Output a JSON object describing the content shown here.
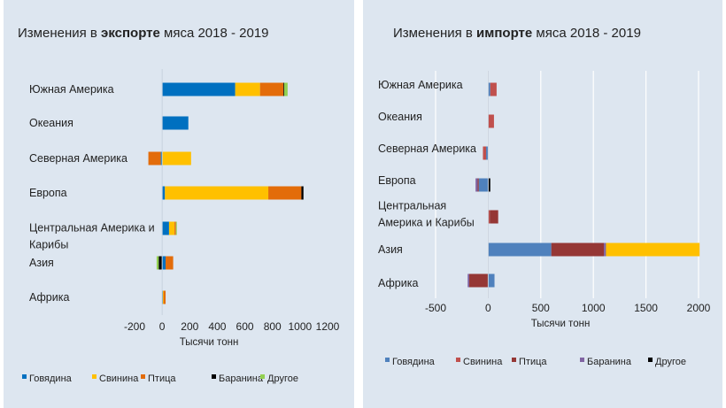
{
  "chart_data": [
    {
      "type": "bar",
      "stacked": true,
      "orientation": "horizontal",
      "title_parts": [
        "Изменения в ",
        "экспорте",
        " мяса 2018 - 2019"
      ],
      "xlabel": "Тысячи тонн",
      "xlim": [
        -200,
        1200
      ],
      "xticks": [
        "-200",
        "0",
        "200",
        "400",
        "600",
        "800",
        "1000",
        "1200"
      ],
      "xtick_values": [
        -200,
        0,
        200,
        400,
        600,
        800,
        1000,
        1200
      ],
      "grid": false,
      "legend_position": "bottom",
      "categories": [
        [
          "Южная Америка"
        ],
        [
          "Океания"
        ],
        [
          "Северная Америка"
        ],
        [
          "Европа"
        ],
        [
          "Центральная Америка и",
          "Карибы"
        ],
        [
          "Азия"
        ],
        [
          "Африка"
        ]
      ],
      "series": [
        {
          "name": "Говядина",
          "color": "#0070c0",
          "values": [
            530,
            190,
            -10,
            20,
            50,
            25,
            5
          ]
        },
        {
          "name": "Свинина",
          "color": "#ffc000",
          "values": [
            180,
            0,
            210,
            750,
            40,
            0,
            5
          ]
        },
        {
          "name": "Птица",
          "color": "#e36c0a",
          "values": [
            170,
            0,
            -90,
            240,
            10,
            55,
            15
          ]
        },
        {
          "name": "Баранина",
          "color": "#000000",
          "values": [
            5,
            0,
            0,
            15,
            0,
            -25,
            0
          ]
        },
        {
          "name": "Другое",
          "color": "#92d050",
          "values": [
            25,
            0,
            0,
            0,
            5,
            -15,
            0
          ]
        }
      ]
    },
    {
      "type": "bar",
      "stacked": true,
      "orientation": "horizontal",
      "title_parts": [
        "Изменения в ",
        "импорте",
        " мяса 2018 - 2019"
      ],
      "xlabel": "Тысячи тонн",
      "xlim": [
        -500,
        2000
      ],
      "xticks": [
        "-500",
        "0",
        "500",
        "1000",
        "1500",
        "2000"
      ],
      "xtick_values": [
        -500,
        0,
        500,
        1000,
        1500,
        2000
      ],
      "grid": true,
      "legend_position": "bottom",
      "categories": [
        [
          "Южная Америка"
        ],
        [
          "Океания"
        ],
        [
          "Северная Америка"
        ],
        [
          "Европа"
        ],
        [
          "Центральная",
          "Америка и Карибы"
        ],
        [
          "Азия"
        ],
        [
          "Африка"
        ]
      ],
      "series": [
        {
          "name": "Говядина",
          "color": "#4f81bd",
          "values": [
            20,
            0,
            -20,
            -90,
            0,
            600,
            60
          ]
        },
        {
          "name": "Свинина",
          "color": "#c0504d",
          "values": [
            60,
            55,
            -30,
            0,
            15,
            0,
            0
          ]
        },
        {
          "name": "Птица",
          "color": "#953735",
          "values": [
            0,
            0,
            0,
            -10,
            80,
            500,
            -180
          ]
        },
        {
          "name": "Баранина",
          "color": "#8064a2",
          "values": [
            0,
            0,
            0,
            -20,
            0,
            20,
            -15
          ]
        },
        {
          "name": "Другое",
          "color": "#000000",
          "values": [
            0,
            0,
            0,
            20,
            0,
            0,
            0
          ]
        },
        {
          "name": "",
          "color": "#ffc000",
          "values": [
            0,
            0,
            0,
            0,
            0,
            890,
            0
          ]
        }
      ],
      "legend_items": [
        "Говядина",
        "Свинина",
        "Птица",
        "Баранина",
        "Другое"
      ],
      "legend_colors": [
        "#4f81bd",
        "#c0504d",
        "#953735",
        "#8064a2",
        "#000000"
      ]
    }
  ]
}
